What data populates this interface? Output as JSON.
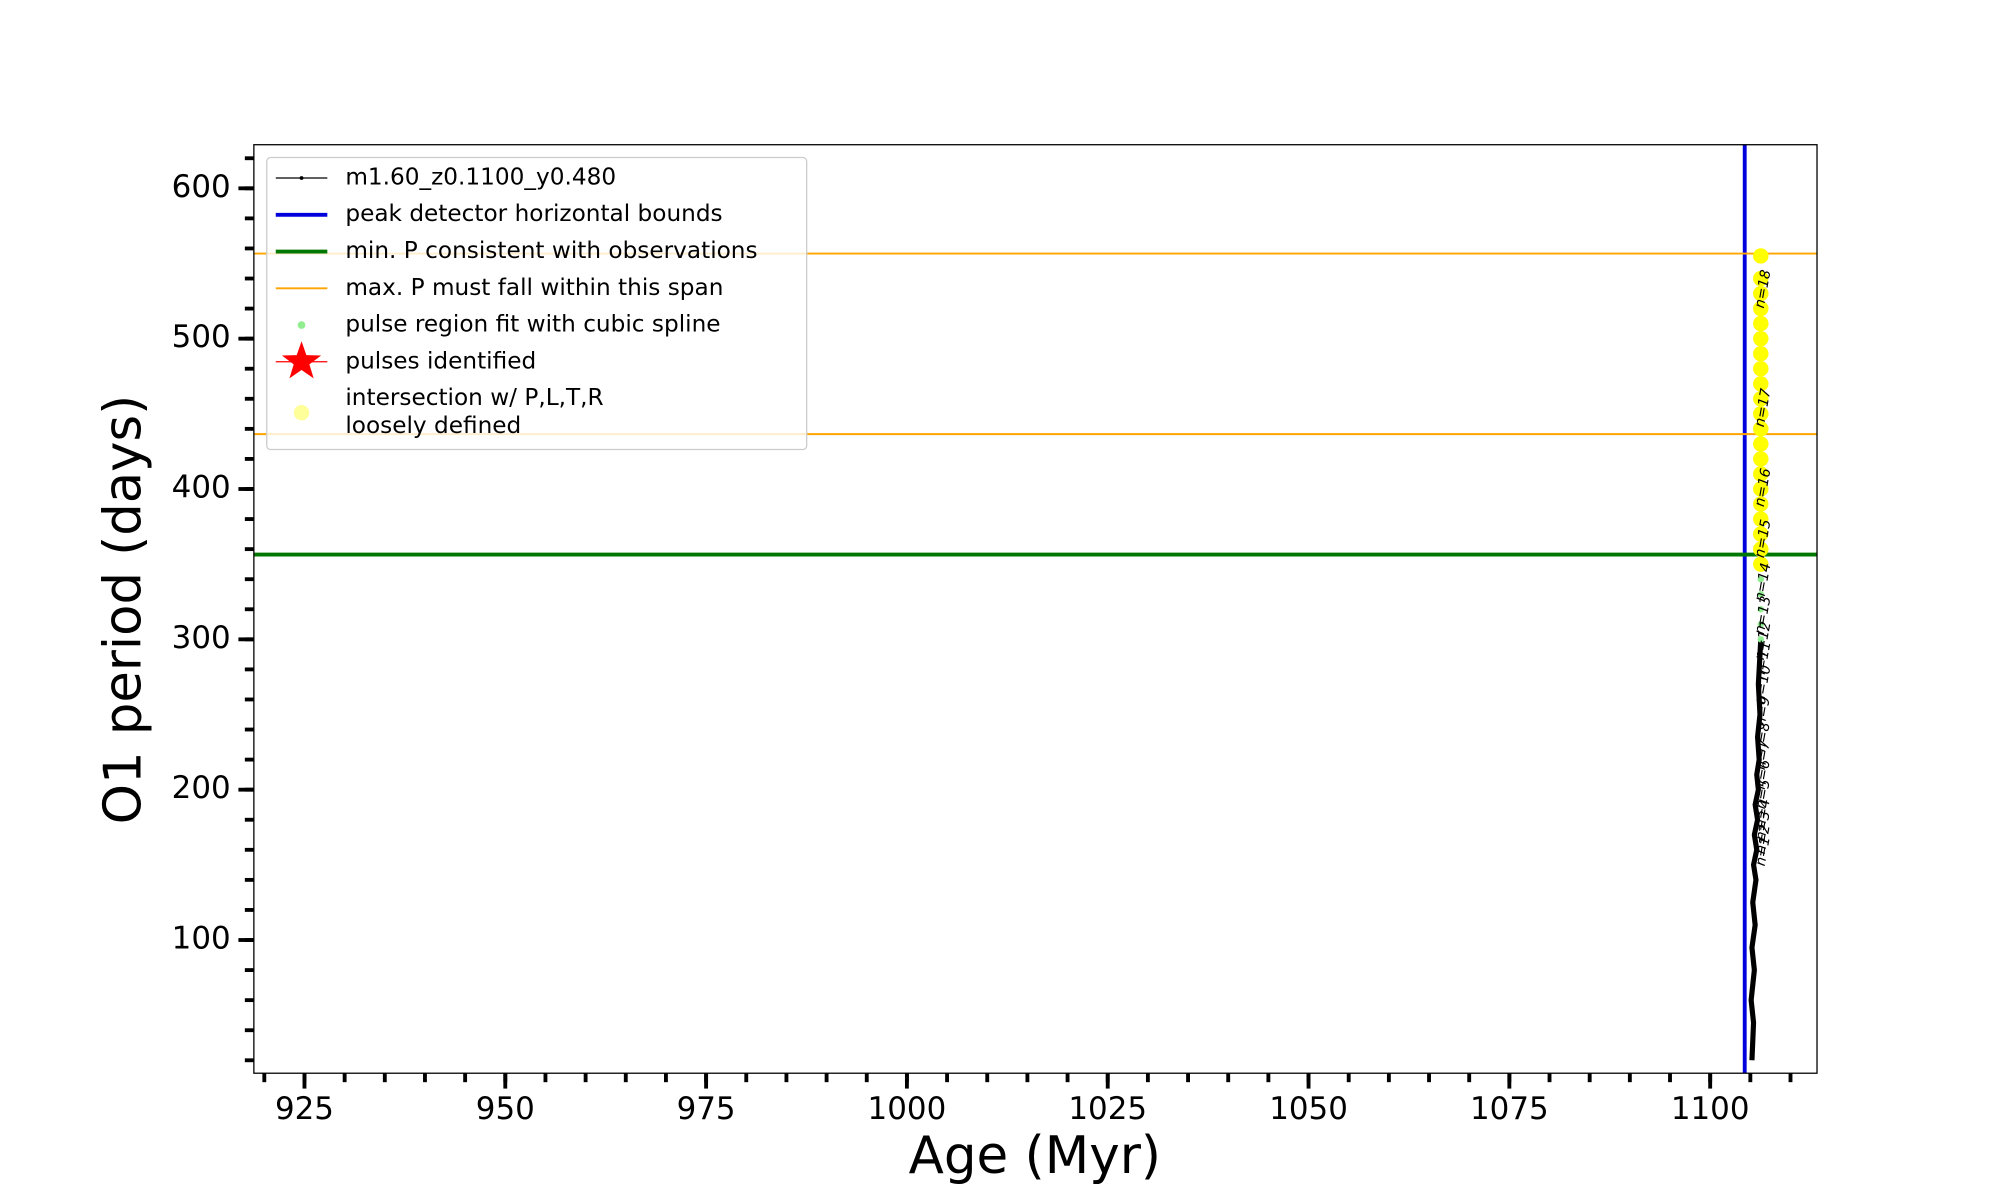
{
  "chart_data": {
    "type": "line",
    "x_label": "Age (Myr)",
    "y_label": "O1 period (days)",
    "xlim": [
      918.7,
      1113.3
    ],
    "ylim": [
      11.4,
      629
    ],
    "xticks": [
      925,
      950,
      975,
      1000,
      1025,
      1050,
      1075,
      1100
    ],
    "yticks": [
      100,
      200,
      300,
      400,
      500,
      600
    ],
    "minor_step": {
      "x": 5,
      "y": 20
    },
    "legend": "upper left",
    "series": [
      {
        "name": "m1.60_z0.1100_y0.480",
        "kind": "line",
        "color": "#000000",
        "x": [
          1105.2,
          1105.4,
          1105.1,
          1105.5,
          1105.2,
          1105.6,
          1105.3,
          1105.7,
          1105.4,
          1105.8,
          1105.5,
          1105.9,
          1105.6,
          1106.0,
          1105.8,
          1106.1,
          1105.9,
          1106.2,
          1106.0,
          1106.3
        ],
        "values": [
          20,
          45,
          60,
          80,
          95,
          110,
          125,
          140,
          150,
          160,
          170,
          180,
          190,
          200,
          210,
          220,
          235,
          250,
          270,
          300
        ]
      },
      {
        "name": "peak detector horizontal bounds",
        "kind": "vline",
        "color": "#0000dd",
        "x": [
          1104.3
        ]
      },
      {
        "name": "min. P consistent with observations",
        "kind": "hline",
        "color": "#007700",
        "values": [
          356.4
        ]
      },
      {
        "name": "max. P must fall within this span",
        "kind": "hline",
        "color": "#ffa500",
        "values": [
          436.5,
          556.6
        ]
      },
      {
        "name": "pulse region fit with cubic spline",
        "kind": "scatter",
        "color": "#90ee90",
        "x": [
          1106.3,
          1106.3,
          1106.3,
          1106.3,
          1106.3,
          1106.3
        ],
        "values": [
          300,
          310,
          320,
          330,
          340,
          350
        ]
      },
      {
        "name": "pulses identified",
        "kind": "star",
        "color": "#ff0000",
        "x": [],
        "values": []
      },
      {
        "name": [
          "intersection w/ P,L,T,R",
          "loosely defined"
        ],
        "kind": "scatter",
        "color": "#ffff00",
        "x": [
          1106.3,
          1106.3,
          1106.3,
          1106.3,
          1106.3,
          1106.3,
          1106.3,
          1106.3,
          1106.3,
          1106.3,
          1106.3,
          1106.3,
          1106.3,
          1106.3,
          1106.3,
          1106.3,
          1106.3,
          1106.3,
          1106.3,
          1106.3,
          1106.3
        ],
        "values": [
          350,
          360,
          370,
          380,
          390,
          400,
          410,
          420,
          430,
          440,
          450,
          460,
          470,
          480,
          490,
          500,
          510,
          520,
          530,
          540,
          555
        ]
      }
    ],
    "annotations": [
      {
        "text": "n=1",
        "x": 1105.0,
        "y": 159
      },
      {
        "text": "n=2",
        "x": 1105.0,
        "y": 167
      },
      {
        "text": "n=3",
        "x": 1105.0,
        "y": 176
      },
      {
        "text": "n=4",
        "x": 1105.0,
        "y": 184
      },
      {
        "text": "n=5",
        "x": 1105.0,
        "y": 197
      },
      {
        "text": "n=6",
        "x": 1105.0,
        "y": 210
      },
      {
        "text": "n=7",
        "x": 1105.0,
        "y": 223
      },
      {
        "text": "n=8",
        "x": 1105.0,
        "y": 235
      },
      {
        "text": "n=9",
        "x": 1105.0,
        "y": 252
      },
      {
        "text": "n=10",
        "x": 1105.0,
        "y": 270
      },
      {
        "text": "n=11",
        "x": 1105.0,
        "y": 286
      },
      {
        "text": "n=12",
        "x": 1105.0,
        "y": 299
      },
      {
        "text": "n=13",
        "x": 1105.0,
        "y": 316
      },
      {
        "text": "n=14",
        "x": 1105.0,
        "y": 338
      },
      {
        "text": "n=15",
        "x": 1105.0,
        "y": 367
      },
      {
        "text": "n=16",
        "x": 1105.0,
        "y": 401
      },
      {
        "text": "n=17",
        "x": 1105.0,
        "y": 454
      },
      {
        "text": "n=18",
        "x": 1105.0,
        "y": 533
      }
    ]
  }
}
